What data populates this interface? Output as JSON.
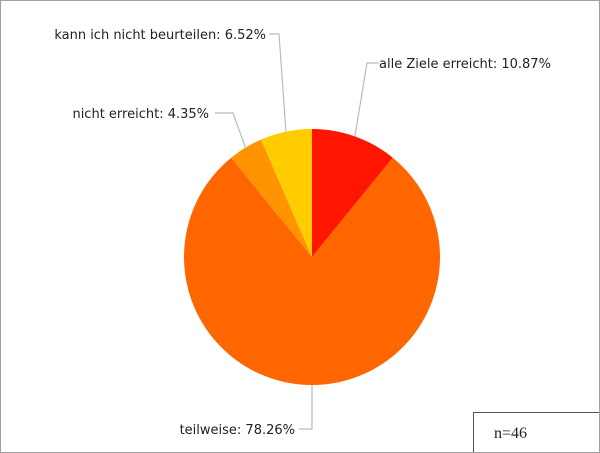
{
  "chart_data": {
    "type": "pie",
    "title": "",
    "start": "top",
    "direction": "clockwise",
    "slices": [
      {
        "label": "alle Ziele erreicht: 10.87%",
        "name": "alle Ziele erreicht",
        "value": 10.87,
        "color": "#FF1500"
      },
      {
        "label": "teilweise: 78.26%",
        "name": "teilweise",
        "value": 78.26,
        "color": "#FF6600"
      },
      {
        "label": "nicht erreicht: 4.35%",
        "name": "nicht erreicht",
        "value": 4.35,
        "color": "#FF9400"
      },
      {
        "label": "kann ich nicht beurteilen: 6.52%",
        "name": "kann ich nicht beurteilen",
        "value": 6.52,
        "color": "#FFCC00"
      }
    ]
  },
  "note": {
    "text": "n=46"
  }
}
